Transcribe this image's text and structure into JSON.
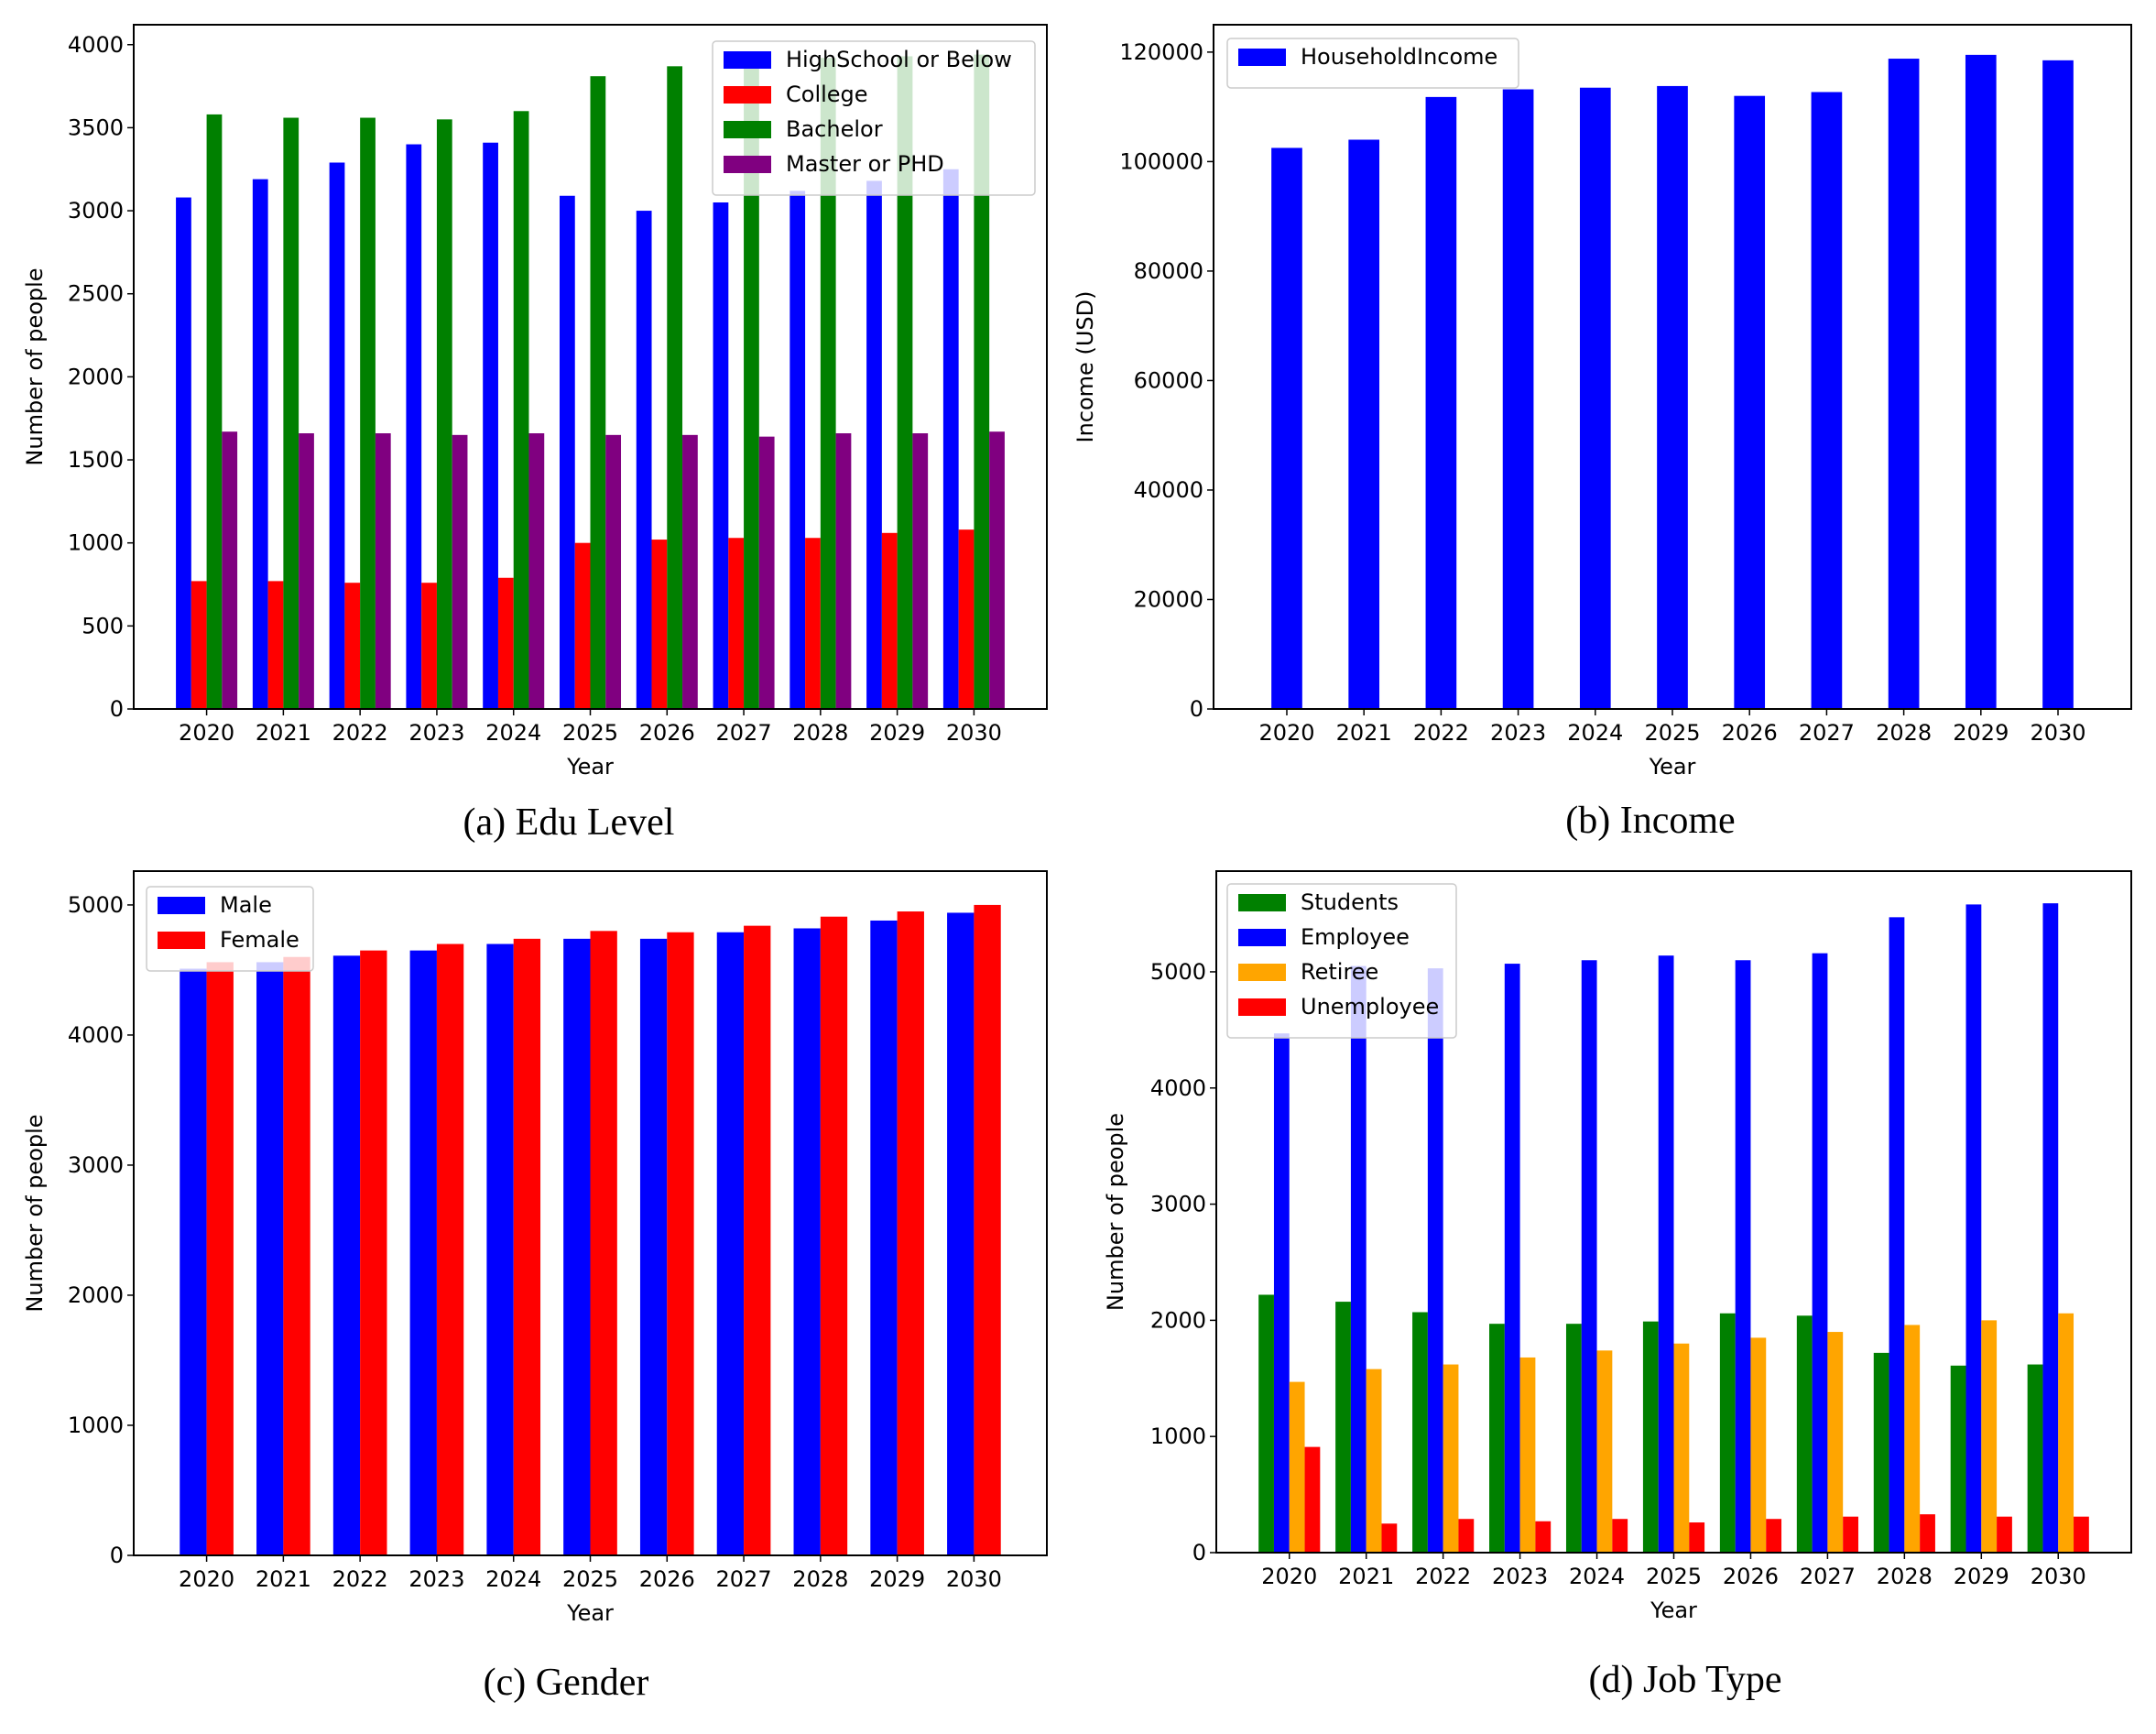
{
  "chart_data": [
    {
      "type": "bar",
      "caption": "(a) Edu Level",
      "xlabel": "Year",
      "ylabel": "Number of people",
      "categories": [
        "2020",
        "2021",
        "2022",
        "2023",
        "2024",
        "2025",
        "2026",
        "2027",
        "2028",
        "2029",
        "2030"
      ],
      "yticks": [
        0,
        500,
        1000,
        1500,
        2000,
        2500,
        3000,
        3500,
        4000
      ],
      "ylim": [
        0,
        4120
      ],
      "legend": "top-right",
      "series": [
        {
          "name": "HighSchool or Below",
          "color": "#0000ff",
          "values": [
            3080,
            3190,
            3290,
            3400,
            3410,
            3090,
            3000,
            3050,
            3120,
            3180,
            3250
          ]
        },
        {
          "name": "College",
          "color": "#ff0000",
          "values": [
            770,
            770,
            760,
            760,
            790,
            1000,
            1020,
            1030,
            1030,
            1060,
            1080
          ]
        },
        {
          "name": "Bachelor",
          "color": "#008000",
          "values": [
            3580,
            3560,
            3560,
            3550,
            3600,
            3810,
            3870,
            3900,
            3920,
            3930,
            3940
          ]
        },
        {
          "name": "Master or PHD",
          "color": "#800080",
          "values": [
            1670,
            1660,
            1660,
            1650,
            1660,
            1650,
            1650,
            1640,
            1660,
            1660,
            1670
          ]
        }
      ]
    },
    {
      "type": "bar",
      "caption": "(b) Income",
      "xlabel": "Year",
      "ylabel": "Income (USD)",
      "categories": [
        "2020",
        "2021",
        "2022",
        "2023",
        "2024",
        "2025",
        "2026",
        "2027",
        "2028",
        "2029",
        "2030"
      ],
      "yticks": [
        0,
        20000,
        40000,
        60000,
        80000,
        100000,
        120000
      ],
      "ylim": [
        0,
        125000
      ],
      "legend": "top-left",
      "series": [
        {
          "name": "HouseholdIncome",
          "color": "#0000ff",
          "values": [
            102500,
            104000,
            111800,
            113200,
            113500,
            113800,
            112000,
            112700,
            118800,
            119500,
            118500
          ]
        }
      ]
    },
    {
      "type": "bar",
      "caption": "(c) Gender",
      "xlabel": "Year",
      "ylabel": "Number of people",
      "categories": [
        "2020",
        "2021",
        "2022",
        "2023",
        "2024",
        "2025",
        "2026",
        "2027",
        "2028",
        "2029",
        "2030"
      ],
      "yticks": [
        0,
        1000,
        2000,
        3000,
        4000,
        5000
      ],
      "ylim": [
        0,
        5260
      ],
      "legend": "top-left",
      "series": [
        {
          "name": "Male",
          "color": "#0000ff",
          "values": [
            4510,
            4560,
            4610,
            4650,
            4700,
            4740,
            4740,
            4790,
            4820,
            4880,
            4940
          ]
        },
        {
          "name": "Female",
          "color": "#ff0000",
          "values": [
            4560,
            4600,
            4650,
            4700,
            4740,
            4800,
            4790,
            4840,
            4910,
            4950,
            5000
          ]
        }
      ]
    },
    {
      "type": "bar",
      "caption": "(d) Job Type",
      "xlabel": "Year",
      "ylabel": "Number of people",
      "categories": [
        "2020",
        "2021",
        "2022",
        "2023",
        "2024",
        "2025",
        "2026",
        "2027",
        "2028",
        "2029",
        "2030"
      ],
      "yticks": [
        0,
        1000,
        2000,
        3000,
        4000,
        5000
      ],
      "ylim": [
        0,
        5867
      ],
      "legend": "top-left",
      "series": [
        {
          "name": "Students",
          "color": "#008000",
          "values": [
            2220,
            2160,
            2070,
            1970,
            1970,
            1990,
            2060,
            2040,
            1720,
            1610,
            1620
          ]
        },
        {
          "name": "Employee",
          "color": "#0000ff",
          "values": [
            4470,
            5050,
            5030,
            5070,
            5100,
            5140,
            5100,
            5160,
            5470,
            5580,
            5590
          ]
        },
        {
          "name": "Retiree",
          "color": "#ffa500",
          "values": [
            1470,
            1580,
            1620,
            1680,
            1740,
            1800,
            1850,
            1900,
            1960,
            2000,
            2060
          ]
        },
        {
          "name": "Unemployee",
          "color": "#ff0000",
          "values": [
            910,
            250,
            290,
            270,
            290,
            260,
            290,
            310,
            330,
            310,
            310
          ]
        }
      ]
    }
  ]
}
